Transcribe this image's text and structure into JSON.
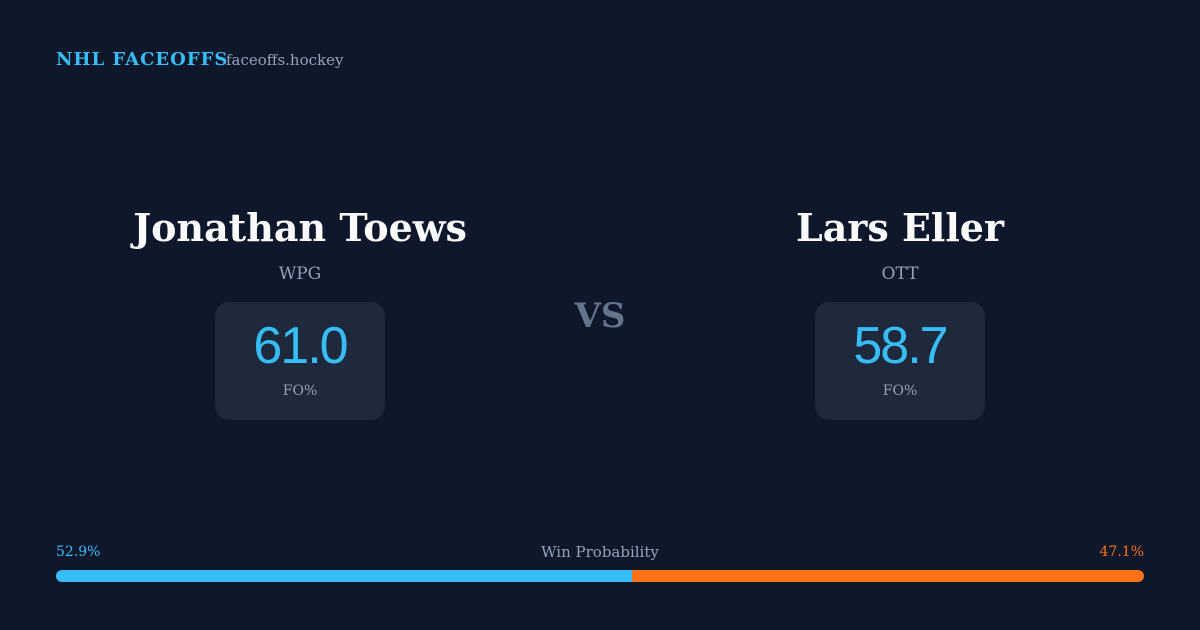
{
  "header": {
    "brand": "NHL FACEOFFS",
    "site": "faceoffs.hockey"
  },
  "players": [
    {
      "name": "Jonathan Toews",
      "team": "WPG",
      "fo_pct": "61.0",
      "fo_label": "FO%"
    },
    {
      "name": "Lars Eller",
      "team": "OTT",
      "fo_pct": "58.7",
      "fo_label": "FO%"
    }
  ],
  "versus": "VS",
  "win_probability": {
    "label": "Win Probability",
    "home": {
      "value": 52.9,
      "label": "52.9%",
      "color": "#38bdf8"
    },
    "away": {
      "value": 47.1,
      "label": "47.1%",
      "color": "#f97316"
    }
  }
}
